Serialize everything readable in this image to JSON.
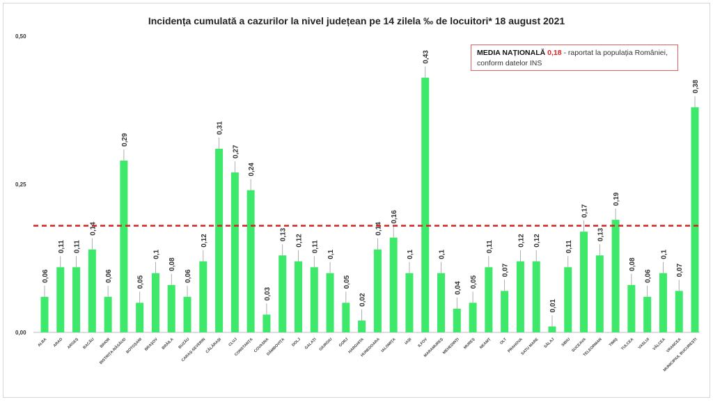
{
  "chart_data": {
    "type": "bar",
    "title": "Incidența cumulată a cazurilor la nivel județean pe 14 zilela ‰ de locuitori*  18 august 2021",
    "xlabel": "",
    "ylabel": "",
    "ylim": [
      0,
      0.5
    ],
    "yticks": [
      "0,00",
      "0,25",
      "0,50"
    ],
    "ytick_values": [
      0,
      0.25,
      0.5
    ],
    "categories": [
      "ALBA",
      "ARAD",
      "ARGEȘ",
      "BACĂU",
      "BIHOR",
      "BISTRIȚA-NĂSĂUD",
      "BOTOȘANI",
      "BRAȘOV",
      "BRĂILA",
      "BUZĂU",
      "CARAȘ-SEVERIN",
      "CĂLĂRAȘI",
      "CLUJ",
      "CONSTANȚA",
      "COVASNA",
      "DÂMBOVIȚA",
      "DOLJ",
      "GALAȚI",
      "GIURGIU",
      "GORJ",
      "HARGHITA",
      "HUNEDOARA",
      "IALOMIȚA",
      "IAȘI",
      "ILFOV",
      "MARAMUREȘ",
      "MEHEDINȚI",
      "MUREȘ",
      "NEAMȚ",
      "OLT",
      "PRAHOVA",
      "SATU MARE",
      "SĂLAJ",
      "SIBIU",
      "SUCEAVA",
      "TELEORMAN",
      "TIMIȘ",
      "TULCEA",
      "VASLUI",
      "VÂLCEA",
      "VRANCEA",
      "MUNICIPIUL BUCUREȘTI"
    ],
    "values": [
      0.06,
      0.11,
      0.11,
      0.14,
      0.06,
      0.29,
      0.05,
      0.1,
      0.08,
      0.06,
      0.12,
      0.31,
      0.27,
      0.24,
      0.03,
      0.13,
      0.12,
      0.11,
      0.1,
      0.05,
      0.02,
      0.14,
      0.16,
      0.1,
      0.43,
      0.1,
      0.04,
      0.05,
      0.11,
      0.07,
      0.12,
      0.12,
      0.01,
      0.11,
      0.17,
      0.13,
      0.19,
      0.08,
      0.06,
      0.1,
      0.07,
      0.38
    ],
    "labels": [
      "0,06",
      "0,11",
      "0,11",
      "0,14",
      "0,06",
      "0,29",
      "0,05",
      "0,1",
      "0,08",
      "0,06",
      "0,12",
      "0,31",
      "0,27",
      "0,24",
      "0,03",
      "0,13",
      "0,12",
      "0,11",
      "0,1",
      "0,05",
      "0,02",
      "0,14",
      "0,16",
      "0,1",
      "0,43",
      "0,1",
      "0,04",
      "0,05",
      "0,11",
      "0,07",
      "0,12",
      "0,12",
      "0,01",
      "0,11",
      "0,17",
      "0,13",
      "0,19",
      "0,08",
      "0,06",
      "0,1",
      "0,07",
      "0,38"
    ],
    "reference_line": {
      "value": 0.18,
      "style": "dashed",
      "color": "#d02020"
    },
    "bar_color": "#3ee86a",
    "legend": {
      "bold": "MEDIA NAȚIONALĂ",
      "value": "0,18",
      "text": " - raportat la populația României, conform datelor INS"
    },
    "legend_position": "top-right",
    "grid": false
  }
}
